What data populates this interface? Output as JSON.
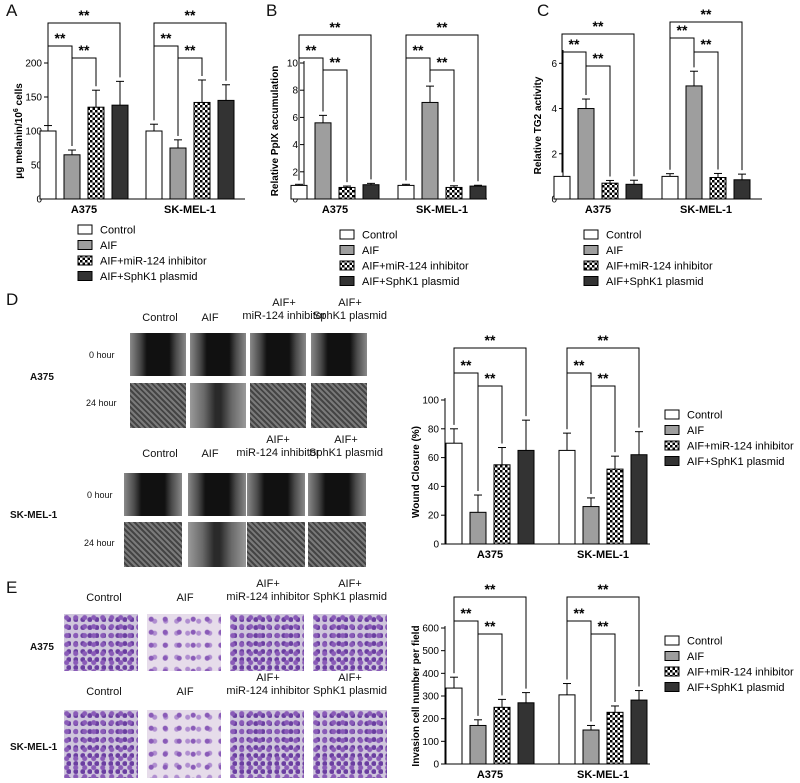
{
  "panels": {
    "A": "A",
    "B": "B",
    "C": "C",
    "D": "D",
    "E": "E"
  },
  "colors": {
    "control": "#ffffff",
    "aif": "#9e9e9e",
    "inhibitor_pattern": "checkerboard black/white",
    "sphk1": "#333333",
    "invasion_stain": "#8a5bb8",
    "wound_image": "#111111"
  },
  "legend": [
    "Control",
    "AIF",
    "AIF+miR-124 inhibitor",
    "AIF+SphK1 plasmid"
  ],
  "groups": [
    "A375",
    "SK-MEL-1"
  ],
  "significance_label": "**",
  "image_panels": {
    "column_headers": [
      "Control",
      "AIF",
      "AIF+\nmiR-124 inhibitor",
      "AIF+\nSphK1 plasmid"
    ],
    "time_labels": [
      "0 hour",
      "24 hour"
    ],
    "row_labels": [
      "A375",
      "SK-MEL-1"
    ]
  },
  "chart_data": [
    {
      "panel": "A",
      "type": "bar",
      "categories": [
        "A375",
        "SK-MEL-1"
      ],
      "series": [
        {
          "name": "Control",
          "values": [
            100,
            100
          ],
          "errors": [
            8,
            10
          ]
        },
        {
          "name": "AIF",
          "values": [
            65,
            75
          ],
          "errors": [
            7,
            12
          ]
        },
        {
          "name": "AIF+miR-124 inhibitor",
          "values": [
            135,
            142
          ],
          "errors": [
            25,
            33
          ]
        },
        {
          "name": "AIF+SphK1 plasmid",
          "values": [
            138,
            145
          ],
          "errors": [
            35,
            23
          ]
        }
      ],
      "ylabel": "μg melanin/10⁶ cells",
      "ylabel_main": "μg melanin/10",
      "ylabel_sup": "6",
      "ylabel_tail": " cells",
      "ylim": [
        0,
        200
      ],
      "yticks": [
        "0",
        "50",
        "100",
        "150",
        "200"
      ]
    },
    {
      "panel": "B",
      "type": "bar",
      "categories": [
        "A375",
        "SK-MEL-1"
      ],
      "series": [
        {
          "name": "Control",
          "values": [
            1.0,
            1.0
          ],
          "errors": [
            0.08,
            0.08
          ]
        },
        {
          "name": "AIF",
          "values": [
            5.6,
            7.1
          ],
          "errors": [
            0.55,
            1.2
          ]
        },
        {
          "name": "AIF+miR-124 inhibitor",
          "values": [
            0.85,
            0.85
          ],
          "errors": [
            0.1,
            0.12
          ]
        },
        {
          "name": "AIF+SphK1 plasmid",
          "values": [
            1.05,
            0.95
          ],
          "errors": [
            0.1,
            0.06
          ]
        }
      ],
      "ylabel": "Relative PpIX accumulation",
      "ylim": [
        0,
        10
      ],
      "yticks": [
        "0",
        "2",
        "4",
        "6",
        "8",
        "10"
      ]
    },
    {
      "panel": "C",
      "type": "bar",
      "categories": [
        "A375",
        "SK-MEL-1"
      ],
      "series": [
        {
          "name": "Control",
          "values": [
            1.0,
            1.0
          ],
          "errors": [
            0.0,
            0.12
          ]
        },
        {
          "name": "AIF",
          "values": [
            4.0,
            5.0
          ],
          "errors": [
            0.42,
            0.65
          ]
        },
        {
          "name": "AIF+miR-124 inhibitor",
          "values": [
            0.7,
            0.95
          ],
          "errors": [
            0.12,
            0.18
          ]
        },
        {
          "name": "AIF+SphK1 plasmid",
          "values": [
            0.65,
            0.85
          ],
          "errors": [
            0.18,
            0.25
          ]
        }
      ],
      "ylabel": "Relative TG2 activity",
      "ylim": [
        0,
        6.5
      ],
      "yticks": [
        "0",
        "2",
        "4",
        "6"
      ]
    },
    {
      "panel": "D",
      "type": "bar",
      "categories": [
        "A375",
        "SK-MEL-1"
      ],
      "series": [
        {
          "name": "Control",
          "values": [
            70,
            65
          ],
          "errors": [
            10,
            12
          ]
        },
        {
          "name": "AIF",
          "values": [
            22,
            26
          ],
          "errors": [
            12,
            6
          ]
        },
        {
          "name": "AIF+miR-124 inhibitor",
          "values": [
            55,
            52
          ],
          "errors": [
            12,
            9
          ]
        },
        {
          "name": "AIF+SphK1 plasmid",
          "values": [
            65,
            62
          ],
          "errors": [
            21,
            16
          ]
        }
      ],
      "ylabel": "Wound Closure (%)",
      "ylim": [
        0,
        100
      ],
      "yticks": [
        "0",
        "20",
        "40",
        "60",
        "80",
        "100"
      ]
    },
    {
      "panel": "E",
      "type": "bar",
      "categories": [
        "A375",
        "SK-MEL-1"
      ],
      "series": [
        {
          "name": "Control",
          "values": [
            335,
            305
          ],
          "errors": [
            48,
            50
          ]
        },
        {
          "name": "AIF",
          "values": [
            170,
            150
          ],
          "errors": [
            25,
            20
          ]
        },
        {
          "name": "AIF+miR-124 inhibitor",
          "values": [
            250,
            228
          ],
          "errors": [
            35,
            28
          ]
        },
        {
          "name": "AIF+SphK1 plasmid",
          "values": [
            270,
            282
          ],
          "errors": [
            45,
            42
          ]
        }
      ],
      "ylabel": "Invasion cell number per field",
      "ylim": [
        0,
        600
      ],
      "yticks": [
        "0",
        "100",
        "200",
        "300",
        "400",
        "500",
        "600"
      ]
    }
  ]
}
